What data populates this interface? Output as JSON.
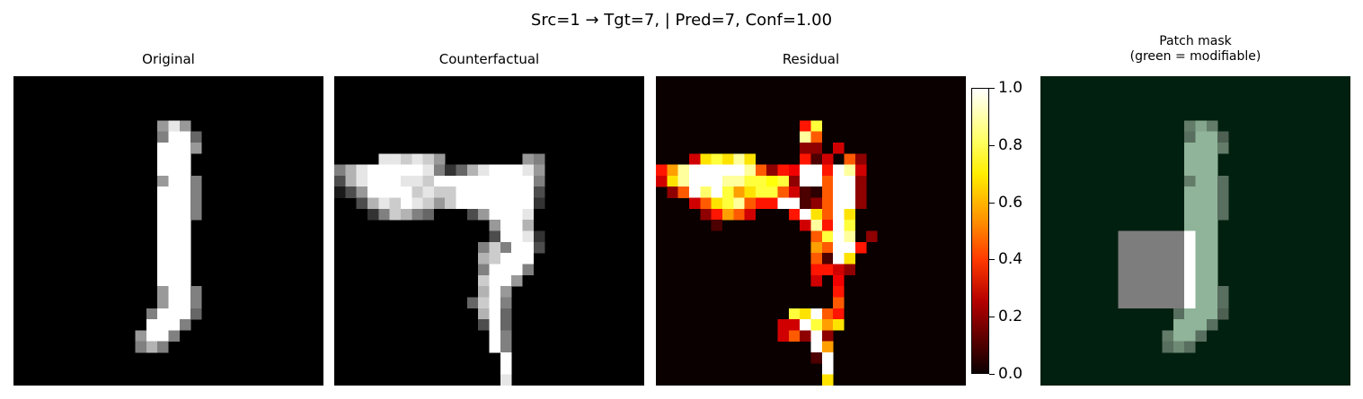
{
  "figure": {
    "suptitle": "Src=1 → Tgt=7, | Pred=7, Conf=1.00"
  },
  "panels": [
    {
      "title": "Original"
    },
    {
      "title": "Counterfactual"
    },
    {
      "title": "Residual"
    },
    {
      "title_line1": "Patch mask",
      "title_line2": "(green = modifiable)"
    }
  ],
  "colors": {
    "mask_background": "#02200f",
    "mask_overlay": "#7d7d7d",
    "digit_on_mask": "#8fb49b"
  },
  "chart_data": [
    {
      "type": "heatmap",
      "title": "Original",
      "grid": [
        28,
        28
      ],
      "colormap": "gray",
      "description_values": "handwritten digit 1, vertical stroke with slight curve at bottom"
    },
    {
      "type": "heatmap",
      "title": "Counterfactual",
      "grid": [
        28,
        28
      ],
      "colormap": "gray",
      "description_values": "digit reshaped into a 7: horizontal bar at top, diagonal stroke downward"
    },
    {
      "type": "heatmap",
      "title": "Residual",
      "grid": [
        28,
        28
      ],
      "colormap": "hot",
      "colorbar": {
        "range": [
          0.0,
          1.0
        ],
        "ticks": [
          "0.0",
          "0.2",
          "0.4",
          "0.6",
          "0.8",
          "1.0"
        ]
      }
    },
    {
      "type": "heatmap",
      "title": "Patch mask\n(green = modifiable)",
      "grid": [
        28,
        28
      ],
      "colormap": "mask overlay"
    }
  ]
}
